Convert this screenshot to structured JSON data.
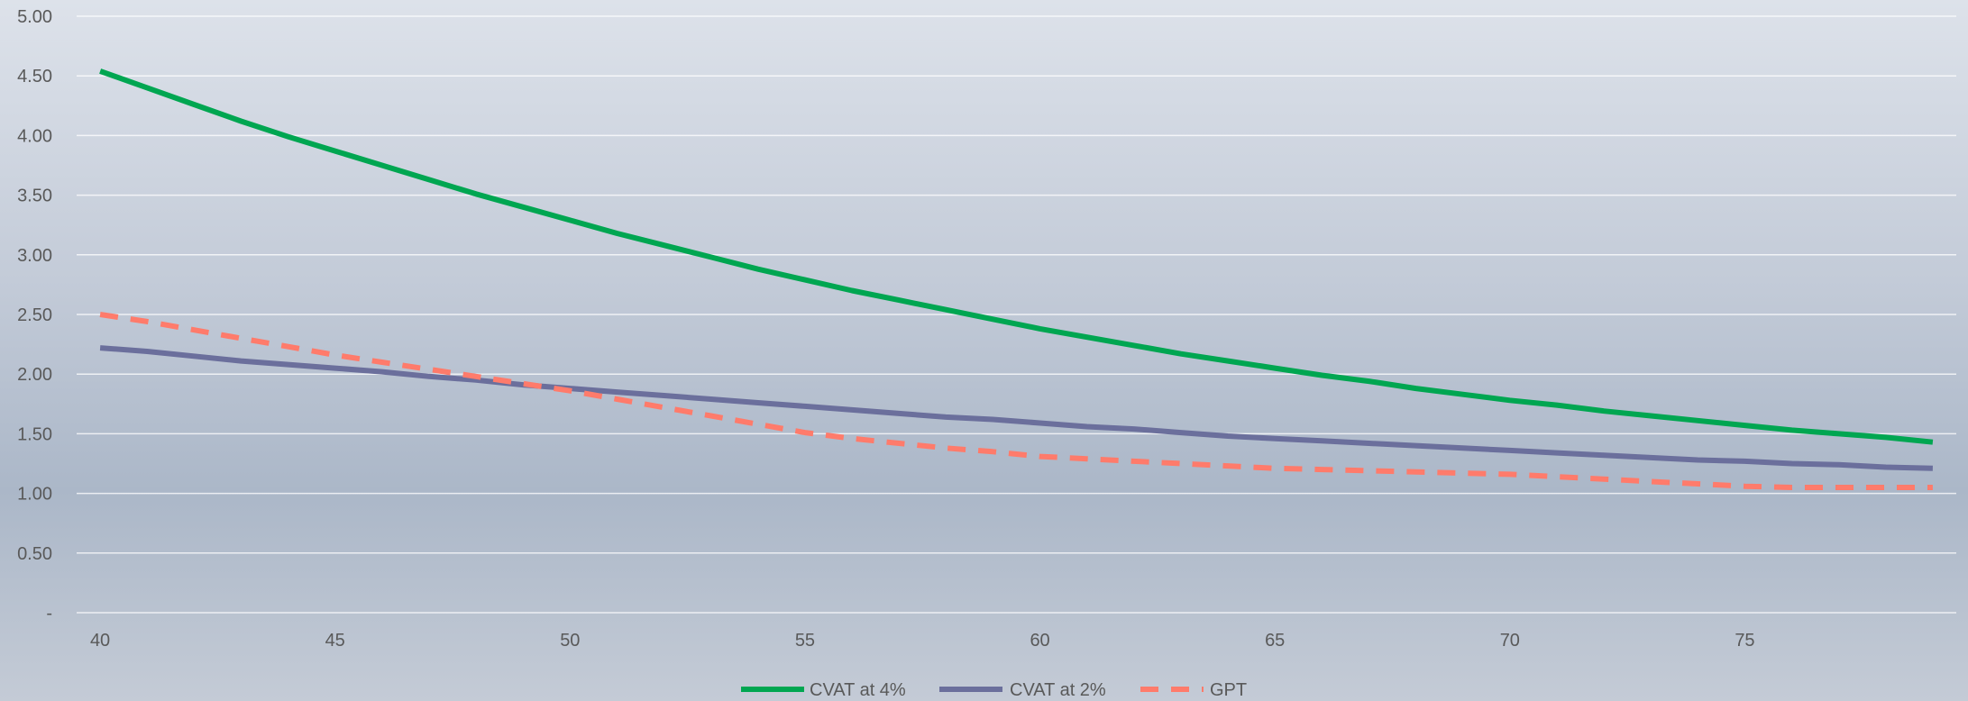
{
  "chart_data": {
    "type": "line",
    "xlim": [
      39.5,
      79.5
    ],
    "ylim": [
      0,
      5
    ],
    "x_ticks": [
      40,
      45,
      50,
      55,
      60,
      65,
      70,
      75
    ],
    "x_tick_labels": [
      "40",
      "45",
      "50",
      "55",
      "60",
      "65",
      "70",
      "75"
    ],
    "y_ticks": [
      0,
      0.5,
      1,
      1.5,
      2,
      2.5,
      3,
      3.5,
      4,
      4.5,
      5
    ],
    "y_tick_labels": [
      "-",
      "0.50",
      "1.00",
      "1.50",
      "2.00",
      "2.50",
      "3.00",
      "3.50",
      "4.00",
      "4.50",
      "5.00"
    ],
    "grid": true,
    "legend_position": "bottom-center",
    "x": [
      40,
      41,
      42,
      43,
      44,
      45,
      46,
      47,
      48,
      49,
      50,
      51,
      52,
      53,
      54,
      55,
      56,
      57,
      58,
      59,
      60,
      61,
      62,
      63,
      64,
      65,
      66,
      67,
      68,
      69,
      70,
      71,
      72,
      73,
      74,
      75,
      76,
      77,
      78,
      79
    ],
    "series": [
      {
        "name": "CVAT at 4%",
        "color": "#00a651",
        "dash": "solid",
        "values": [
          4.54,
          4.4,
          4.26,
          4.12,
          3.99,
          3.87,
          3.75,
          3.63,
          3.51,
          3.4,
          3.29,
          3.18,
          3.08,
          2.98,
          2.88,
          2.79,
          2.7,
          2.62,
          2.54,
          2.46,
          2.38,
          2.31,
          2.24,
          2.17,
          2.11,
          2.05,
          1.99,
          1.94,
          1.88,
          1.83,
          1.78,
          1.74,
          1.69,
          1.65,
          1.61,
          1.57,
          1.53,
          1.5,
          1.47,
          1.43
        ]
      },
      {
        "name": "CVAT at 2%",
        "color": "#6b6f9c",
        "dash": "solid",
        "values": [
          2.22,
          2.19,
          2.15,
          2.11,
          2.08,
          2.05,
          2.02,
          1.98,
          1.95,
          1.91,
          1.88,
          1.85,
          1.82,
          1.79,
          1.76,
          1.73,
          1.7,
          1.67,
          1.64,
          1.62,
          1.59,
          1.56,
          1.54,
          1.51,
          1.48,
          1.46,
          1.44,
          1.42,
          1.4,
          1.38,
          1.36,
          1.34,
          1.32,
          1.3,
          1.28,
          1.27,
          1.25,
          1.24,
          1.22,
          1.21
        ]
      },
      {
        "name": "GPT",
        "color": "#ff7b6b",
        "dash": "dashed",
        "values": [
          2.5,
          2.44,
          2.37,
          2.3,
          2.23,
          2.16,
          2.1,
          2.04,
          1.98,
          1.92,
          1.86,
          1.79,
          1.72,
          1.65,
          1.58,
          1.51,
          1.46,
          1.42,
          1.38,
          1.35,
          1.31,
          1.29,
          1.27,
          1.25,
          1.23,
          1.21,
          1.2,
          1.19,
          1.18,
          1.17,
          1.16,
          1.14,
          1.12,
          1.1,
          1.08,
          1.06,
          1.05,
          1.05,
          1.05,
          1.05
        ]
      }
    ]
  }
}
